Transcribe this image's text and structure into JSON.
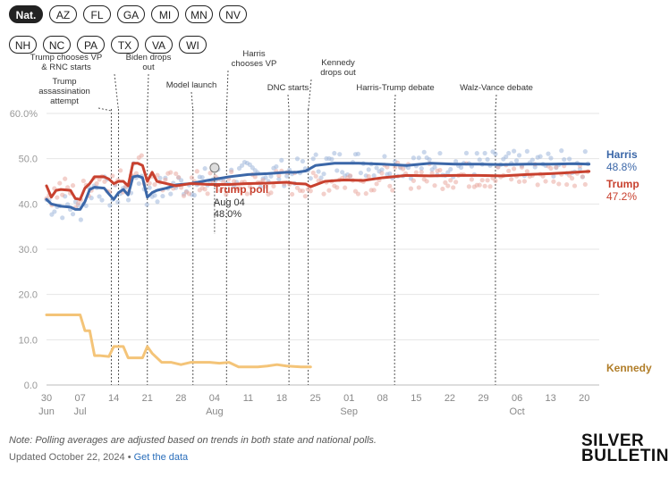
{
  "filters": {
    "row1": [
      "Nat.",
      "AZ",
      "FL",
      "GA",
      "MI",
      "MN",
      "NV"
    ],
    "row2": [
      "NH",
      "NC",
      "PA",
      "TX",
      "VA",
      "WI"
    ],
    "active": "Nat."
  },
  "footer": {
    "note": "Note: Polling averages are adjusted based on trends in both state and national polls.",
    "updated": "Updated October 22, 2024",
    "separator": " • ",
    "link": "Get the data"
  },
  "logo": {
    "line1": "SILVER",
    "line2": "BULLETIN"
  },
  "chart_data": {
    "type": "line",
    "title": "",
    "ylim": [
      0,
      60
    ],
    "y_ticks": [
      "0.0",
      "10.0",
      "20.0",
      "30.0",
      "40.0",
      "50.0",
      "60.0%"
    ],
    "y_tick_values": [
      0,
      10,
      20,
      30,
      40,
      50,
      60
    ],
    "x_range_days": [
      0,
      114
    ],
    "x_ticks": [
      {
        "day": 0,
        "label": "30"
      },
      {
        "day": 7,
        "label": "07"
      },
      {
        "day": 14,
        "label": "14"
      },
      {
        "day": 21,
        "label": "21"
      },
      {
        "day": 28,
        "label": "28"
      },
      {
        "day": 35,
        "label": "04"
      },
      {
        "day": 42,
        "label": "11"
      },
      {
        "day": 49,
        "label": "18"
      },
      {
        "day": 56,
        "label": "25"
      },
      {
        "day": 63,
        "label": "01"
      },
      {
        "day": 70,
        "label": "08"
      },
      {
        "day": 77,
        "label": "15"
      },
      {
        "day": 84,
        "label": "22"
      },
      {
        "day": 91,
        "label": "29"
      },
      {
        "day": 98,
        "label": "06"
      },
      {
        "day": 105,
        "label": "13"
      },
      {
        "day": 112,
        "label": "20"
      }
    ],
    "month_labels": [
      {
        "day": 0,
        "label": "Jun"
      },
      {
        "day": 7,
        "label": "Jul"
      },
      {
        "day": 35,
        "label": "Aug"
      },
      {
        "day": 63,
        "label": "Sep"
      },
      {
        "day": 98,
        "label": "Oct"
      }
    ],
    "events": [
      {
        "day": 13.5,
        "lines": [
          "Trump",
          "assassination",
          "attempt"
        ]
      },
      {
        "day": 15,
        "lines": [
          "Trump chooses VP",
          "& RNC starts"
        ]
      },
      {
        "day": 21,
        "lines": [
          "Biden drops",
          "out"
        ]
      },
      {
        "day": 30.5,
        "lines": [
          "Model launch"
        ]
      },
      {
        "day": 37.5,
        "lines": [
          "Harris",
          "chooses VP"
        ]
      },
      {
        "day": 50.5,
        "lines": [
          "DNC starts"
        ]
      },
      {
        "day": 54.5,
        "lines": [
          "Kennedy",
          "drops out"
        ]
      },
      {
        "day": 72.5,
        "lines": [
          "Harris-Trump debate"
        ]
      },
      {
        "day": 93.5,
        "lines": [
          "Walz-Vance debate"
        ]
      }
    ],
    "series": [
      {
        "name": "Harris",
        "color": "#3b67a8",
        "end_label": "48.8%",
        "x": [
          0,
          1,
          3,
          5,
          6,
          7,
          8,
          9,
          10,
          12,
          13,
          14,
          15,
          16,
          17,
          18,
          19,
          20,
          21,
          22,
          23,
          25,
          27,
          30,
          34,
          38,
          42,
          46,
          50,
          52,
          54,
          56,
          60,
          65,
          70,
          75,
          80,
          85,
          90,
          95,
          100,
          105,
          110,
          113
        ],
        "values": [
          41.0,
          40.0,
          39.5,
          39.3,
          38.8,
          38.8,
          40.5,
          43.2,
          43.7,
          43.5,
          42.2,
          41.0,
          42.5,
          43.2,
          42.0,
          46.0,
          46.2,
          45.8,
          41.5,
          42.5,
          43.0,
          43.5,
          44.2,
          44.5,
          45.3,
          46.0,
          46.5,
          46.7,
          47.0,
          47.0,
          47.3,
          48.5,
          49.0,
          49.0,
          48.8,
          48.5,
          49.0,
          48.8,
          48.8,
          48.7,
          48.8,
          48.8,
          48.9,
          48.8
        ]
      },
      {
        "name": "Trump",
        "color": "#c8412f",
        "end_label": "47.2%",
        "x": [
          0,
          1,
          2,
          3,
          5,
          6,
          7,
          8,
          9,
          10,
          12,
          13,
          14,
          15,
          16,
          17,
          18,
          19,
          20,
          21,
          22,
          23,
          25,
          27,
          30,
          34,
          38,
          42,
          46,
          50,
          52,
          54,
          55,
          58,
          62,
          66,
          70,
          75,
          80,
          85,
          90,
          95,
          100,
          105,
          110,
          113
        ],
        "values": [
          44.0,
          41.5,
          43.0,
          43.2,
          43.0,
          41.2,
          41.0,
          43.5,
          44.5,
          46.0,
          46.0,
          45.5,
          44.5,
          45.0,
          45.0,
          44.0,
          49.0,
          49.0,
          48.5,
          45.0,
          47.0,
          45.0,
          44.5,
          44.0,
          44.5,
          44.3,
          44.3,
          44.5,
          44.6,
          44.8,
          44.5,
          44.4,
          43.8,
          45.0,
          45.3,
          45.2,
          45.8,
          46.3,
          46.2,
          46.3,
          46.3,
          46.2,
          46.5,
          46.7,
          47.0,
          47.2
        ]
      },
      {
        "name": "Kennedy",
        "color": "#f4c478",
        "label_color": "#b07d28",
        "x": [
          0,
          3,
          6,
          7,
          8,
          9,
          10,
          11,
          13,
          14,
          16,
          17,
          18,
          20,
          21,
          22,
          24,
          26,
          28,
          30,
          34,
          36,
          38,
          40,
          42,
          44,
          46,
          48,
          50,
          53,
          55
        ],
        "values": [
          15.5,
          15.5,
          15.5,
          15.5,
          12.0,
          12.0,
          6.5,
          6.5,
          6.3,
          8.5,
          8.5,
          6.0,
          6.0,
          6.0,
          8.5,
          7.0,
          5.0,
          5.0,
          4.5,
          5.0,
          5.0,
          4.8,
          5.0,
          4.0,
          4.0,
          4.0,
          4.2,
          4.5,
          4.2,
          4.0,
          4.0
        ]
      }
    ],
    "tooltip": {
      "series": "Trump",
      "title": "Trump poll",
      "date": "Aug 04",
      "value": "48.0%",
      "day": 35,
      "y": 48.0
    }
  }
}
